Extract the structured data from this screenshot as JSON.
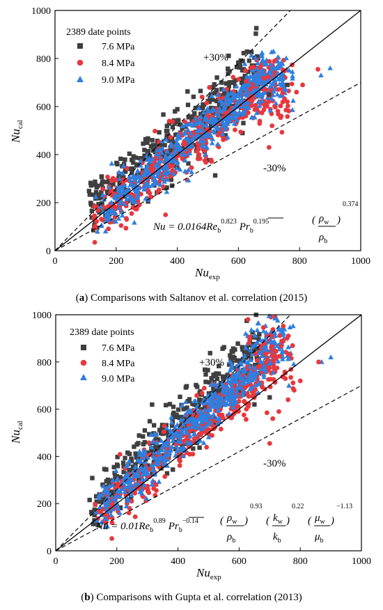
{
  "colors": {
    "s76": "#3f3f3f",
    "s84": "#e8373d",
    "s90": "#2f7fe0"
  },
  "chart_data": [
    {
      "type": "scatter",
      "xlabel": "Nu",
      "xlabel_sub": "exp",
      "ylabel": "Nu",
      "ylabel_sub": "cal",
      "xlim": [
        0,
        1000
      ],
      "ylim": [
        0,
        1000
      ],
      "ticks": [
        "0",
        "200",
        "400",
        "600",
        "800",
        "1000"
      ],
      "legend_title": "2389 date points",
      "legend_placement": "top-left",
      "series": [
        {
          "name": "7.6 MPa",
          "marker": "square",
          "color": "#3f3f3f"
        },
        {
          "name": "8.4 MPa",
          "marker": "circle",
          "color": "#e8373d"
        },
        {
          "name": "9.0 MPa",
          "marker": "triangle",
          "color": "#2f7fe0"
        }
      ],
      "guide_lines": [
        {
          "style": "solid",
          "slope": 1.0
        },
        {
          "style": "dashed",
          "slope": 1.3,
          "label": "+30%"
        },
        {
          "style": "dashed",
          "slope": 0.7,
          "label": "-30%"
        }
      ],
      "equation": {
        "lhs": "Nu = 0.0164",
        "re": "Re",
        "re_sub": "b",
        "re_exp": "0.823",
        "pr": "Pr",
        "pr_sub": "b",
        "pr_exp": "0.195",
        "rho_w": "ρ",
        "rho_w_sub": "w",
        "rho_b": "ρ",
        "rho_b_sub": "b",
        "rho_exp": "0.374"
      },
      "caption_letter": "a",
      "caption": "Comparisons with Saltanov et al. correlation (2015)"
    },
    {
      "type": "scatter",
      "xlabel": "Nu",
      "xlabel_sub": "exp",
      "ylabel": "Nu",
      "ylabel_sub": "cal",
      "xlim": [
        0,
        1000
      ],
      "ylim": [
        0,
        1000
      ],
      "ticks": [
        "0",
        "200",
        "400",
        "600",
        "800",
        "1000"
      ],
      "legend_title": "2389 date points",
      "legend_placement": "top-left",
      "series": [
        {
          "name": "7.6 MPa",
          "marker": "square",
          "color": "#3f3f3f"
        },
        {
          "name": "8.4 MPa",
          "marker": "circle",
          "color": "#e8373d"
        },
        {
          "name": "9.0 MPa",
          "marker": "triangle",
          "color": "#2f7fe0"
        }
      ],
      "guide_lines": [
        {
          "style": "solid",
          "slope": 1.0
        },
        {
          "style": "dashed",
          "slope": 1.3,
          "label": "+30%"
        },
        {
          "style": "dashed",
          "slope": 0.7,
          "label": "-30%"
        }
      ],
      "equation": {
        "lhs": "Nu = 0.01",
        "re": "Re",
        "re_sub": "b",
        "re_exp": "0.89",
        "pr": "Pr",
        "pr_sub": "b",
        "pr_exp": "−0.14",
        "rho_w": "ρ",
        "rho_w_sub": "w",
        "rho_b": "ρ",
        "rho_b_sub": "b",
        "rho_exp": "0.93",
        "k_w": "k",
        "k_w_sub": "w",
        "k_b": "k",
        "k_b_sub": "b",
        "k_exp": "0.22",
        "mu_w": "μ",
        "mu_w_sub": "w",
        "mu_b": "μ",
        "mu_b_sub": "b",
        "mu_exp": "−1.13"
      },
      "caption_letter": "b",
      "caption": "Comparisons with Gupta et al. correlation (2013)"
    }
  ]
}
